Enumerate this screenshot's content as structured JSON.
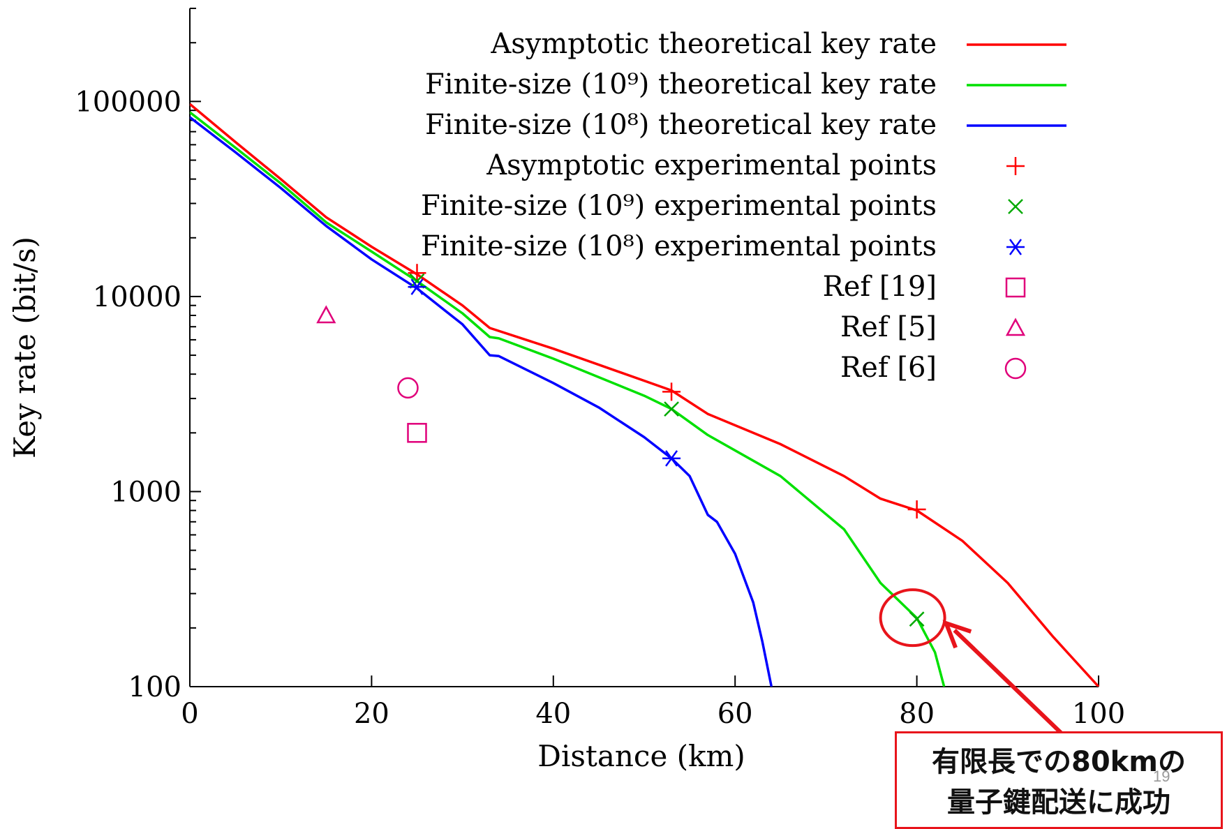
{
  "chart_data": {
    "type": "line",
    "title": "",
    "xlabel": "Distance (km)",
    "ylabel": "Key rate (bit/s)",
    "xlim": [
      0,
      100
    ],
    "ylim": [
      100,
      300000
    ],
    "yscale": "log",
    "x_ticks": [
      "0",
      "20",
      "40",
      "60",
      "80",
      "100"
    ],
    "y_ticks": [
      "100",
      "1000",
      "10000",
      "100000"
    ],
    "grid": false,
    "legend_position": "top-right",
    "series": [
      {
        "name": "Asymptotic theoretical key rate",
        "kind": "line",
        "color": "#ff0000",
        "points": [
          [
            0,
            97000
          ],
          [
            5,
            62000
          ],
          [
            10,
            40000
          ],
          [
            15,
            25500
          ],
          [
            20,
            18000
          ],
          [
            25,
            13000
          ],
          [
            30,
            9000
          ],
          [
            33,
            6900
          ],
          [
            40,
            5400
          ],
          [
            50,
            3700
          ],
          [
            53,
            3300
          ],
          [
            57,
            2500
          ],
          [
            65,
            1750
          ],
          [
            72,
            1200
          ],
          [
            76,
            920
          ],
          [
            80,
            800
          ],
          [
            85,
            560
          ],
          [
            90,
            340
          ],
          [
            95,
            180
          ],
          [
            100,
            100
          ]
        ]
      },
      {
        "name": "Finite-size (10⁹) theoretical key rate",
        "kind": "line",
        "color": "#00e000",
        "points": [
          [
            0,
            88000
          ],
          [
            5,
            58000
          ],
          [
            10,
            38000
          ],
          [
            15,
            24000
          ],
          [
            20,
            17000
          ],
          [
            25,
            12000
          ],
          [
            30,
            8200
          ],
          [
            33,
            6200
          ],
          [
            34,
            6100
          ],
          [
            40,
            4800
          ],
          [
            50,
            3100
          ],
          [
            53,
            2650
          ],
          [
            57,
            1950
          ],
          [
            65,
            1200
          ],
          [
            72,
            640
          ],
          [
            76,
            340
          ],
          [
            80,
            225
          ],
          [
            82,
            150
          ],
          [
            83,
            100
          ]
        ]
      },
      {
        "name": "Finite-size (10⁸) theoretical key rate",
        "kind": "line",
        "color": "#0000ff",
        "points": [
          [
            0,
            83000
          ],
          [
            5,
            55000
          ],
          [
            10,
            36000
          ],
          [
            15,
            23000
          ],
          [
            20,
            15500
          ],
          [
            25,
            11000
          ],
          [
            30,
            7200
          ],
          [
            33,
            5000
          ],
          [
            34,
            4950
          ],
          [
            40,
            3600
          ],
          [
            45,
            2700
          ],
          [
            50,
            1900
          ],
          [
            53,
            1480
          ],
          [
            55,
            1200
          ],
          [
            57,
            760
          ],
          [
            58,
            700
          ],
          [
            60,
            480
          ],
          [
            62,
            270
          ],
          [
            63,
            170
          ],
          [
            64,
            100
          ]
        ]
      },
      {
        "name": "Asymptotic experimental points",
        "kind": "marker",
        "marker": "plus",
        "color": "#ff0000",
        "points": [
          [
            25,
            13200
          ],
          [
            53,
            3250
          ],
          [
            80,
            810
          ]
        ]
      },
      {
        "name": "Finite-size (10⁹) experimental points",
        "kind": "marker",
        "marker": "x",
        "color": "#00aa00",
        "points": [
          [
            25,
            12000
          ],
          [
            53,
            2650
          ],
          [
            80,
            222
          ]
        ]
      },
      {
        "name": "Finite-size (10⁸) experimental points",
        "kind": "marker",
        "marker": "star",
        "color": "#0000ff",
        "points": [
          [
            25,
            11200
          ],
          [
            53,
            1480
          ]
        ]
      },
      {
        "name": "Ref [19]",
        "kind": "marker",
        "marker": "square",
        "color": "#e0007a",
        "points": [
          [
            25,
            2000
          ]
        ]
      },
      {
        "name": "Ref [5]",
        "kind": "marker",
        "marker": "triangle",
        "color": "#e0007a",
        "points": [
          [
            15,
            8000
          ]
        ]
      },
      {
        "name": "Ref [6]",
        "kind": "marker",
        "marker": "circle",
        "color": "#e0007a",
        "points": [
          [
            24,
            3400
          ]
        ]
      }
    ],
    "annotation": {
      "highlight_point": [
        80,
        222
      ],
      "color": "#e8141b",
      "text_line1": "有限長での80kmの",
      "text_line2": "量子鍵配送に成功"
    }
  },
  "slide_number": "19"
}
